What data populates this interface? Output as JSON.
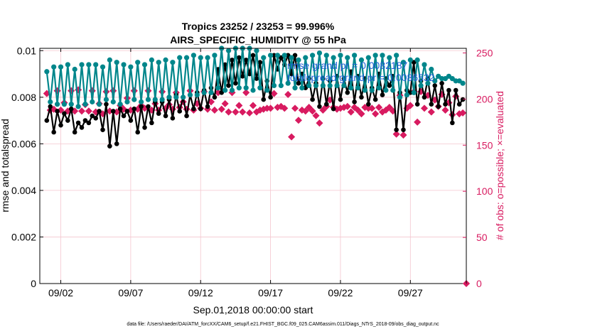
{
  "chart_data": {
    "type": "line",
    "title": "Tropics 23252 / 23253 = 99.996%",
    "subtitle": "AIRS_SPECIFIC_HUMIDITY @ 55 hPa",
    "xlabel": "Sep.01,2018 00:00:00 start",
    "ylabel_left": "rmse and totalspread",
    "ylabel_right": "# of obs: o=possible; ×=evaluated",
    "footnote": "data file: /Users/raeder/DAI/ATM_forcXX/CAM6_setup/f.e21.FHIST_BGC.f09_025.CAM6assim.011/Diags_NTrS_2018-09/obs_diag_output.nc",
    "x_range_days": [
      0.5,
      31.0
    ],
    "y_left_lim": [
      0,
      0.0101
    ],
    "y_right_lim": [
      0,
      255
    ],
    "x_ticks": [
      {
        "day": 2,
        "label": "09/02"
      },
      {
        "day": 7,
        "label": "09/07"
      },
      {
        "day": 12,
        "label": "09/12"
      },
      {
        "day": 17,
        "label": "09/17"
      },
      {
        "day": 22,
        "label": "09/22"
      },
      {
        "day": 27,
        "label": "09/27"
      }
    ],
    "y_left_ticks": [
      {
        "value": 0,
        "label": "0"
      },
      {
        "value": 0.002,
        "label": "0.002"
      },
      {
        "value": 0.004,
        "label": "0.004"
      },
      {
        "value": 0.006,
        "label": "0.006"
      },
      {
        "value": 0.008,
        "label": "0.008"
      },
      {
        "value": 0.01,
        "label": "0.01"
      }
    ],
    "y_right_ticks": [
      {
        "value": 0,
        "label": "0"
      },
      {
        "value": 50,
        "label": "50"
      },
      {
        "value": 100,
        "label": "100"
      },
      {
        "value": 150,
        "label": "150"
      },
      {
        "value": 200,
        "label": "200"
      },
      {
        "value": 250,
        "label": "250"
      }
    ],
    "legend": [
      "rmse grand pr = 0.0082187",
      "totalspread grand pr = 0.0086532"
    ],
    "colors": {
      "rmse": "#000000",
      "totalspread": "#00868b",
      "obs": "#d81b60",
      "legend_text": "#1e5fd6",
      "grid": "#f4c6cf"
    },
    "series": [
      {
        "name": "rmse",
        "time_days": [
          1.0,
          1.25,
          1.5,
          1.75,
          2.0,
          2.25,
          2.5,
          2.75,
          3.0,
          3.25,
          3.5,
          3.75,
          4.0,
          4.25,
          4.5,
          4.75,
          5.0,
          5.25,
          5.5,
          5.75,
          6.0,
          6.25,
          6.5,
          6.75,
          7.0,
          7.25,
          7.5,
          7.75,
          8.0,
          8.25,
          8.5,
          8.75,
          9.0,
          9.25,
          9.5,
          9.75,
          10.0,
          10.25,
          10.5,
          10.75,
          11.0,
          11.25,
          11.5,
          11.75,
          12.0,
          12.25,
          12.5,
          12.75,
          13.0,
          13.25,
          13.5,
          13.75,
          14.0,
          14.25,
          14.5,
          14.75,
          15.0,
          15.25,
          15.5,
          15.75,
          16.0,
          16.25,
          16.5,
          16.75,
          17.0,
          17.25,
          17.5,
          17.75,
          18.0,
          18.25,
          18.5,
          18.75,
          19.0,
          19.25,
          19.5,
          19.75,
          20.0,
          20.25,
          20.5,
          20.75,
          21.0,
          21.25,
          21.5,
          21.75,
          22.0,
          22.25,
          22.5,
          22.75,
          23.0,
          23.25,
          23.5,
          23.75,
          24.0,
          24.25,
          24.5,
          24.75,
          25.0,
          25.25,
          25.5,
          25.75,
          26.0,
          26.25,
          26.5,
          26.75,
          27.0,
          27.25,
          27.5,
          27.75,
          28.0,
          28.25,
          28.5,
          28.75,
          29.0,
          29.25,
          29.5,
          29.75,
          30.0,
          30.25,
          30.5,
          30.75
        ],
        "values": [
          0.007,
          0.0076,
          0.0065,
          0.0074,
          0.0068,
          0.0073,
          0.007,
          0.0075,
          0.0065,
          0.0069,
          0.0067,
          0.007,
          0.0069,
          0.0072,
          0.0071,
          0.0074,
          0.0066,
          0.0077,
          0.0059,
          0.0074,
          0.006,
          0.0075,
          0.0072,
          0.0074,
          0.007,
          0.0075,
          0.0065,
          0.0076,
          0.0067,
          0.0076,
          0.0069,
          0.0078,
          0.0073,
          0.0078,
          0.0072,
          0.0079,
          0.0071,
          0.0081,
          0.0074,
          0.008,
          0.0072,
          0.0081,
          0.0075,
          0.0082,
          0.0075,
          0.0083,
          0.0076,
          0.0084,
          0.008,
          0.0092,
          0.0082,
          0.0094,
          0.0085,
          0.0096,
          0.0086,
          0.0097,
          0.0089,
          0.0096,
          0.009,
          0.0098,
          0.0088,
          0.0095,
          0.0079,
          0.0087,
          0.008,
          0.0098,
          0.0092,
          0.0097,
          0.0094,
          0.0098,
          0.009,
          0.0098,
          0.0086,
          0.009,
          0.0084,
          0.0088,
          0.0079,
          0.0086,
          0.0076,
          0.0088,
          0.0077,
          0.0087,
          0.0075,
          0.0089,
          0.0079,
          0.0088,
          0.0082,
          0.0091,
          0.0078,
          0.0089,
          0.008,
          0.0088,
          0.0077,
          0.0084,
          0.0079,
          0.009,
          0.0081,
          0.0088,
          0.0085,
          0.0089,
          0.0066,
          0.0082,
          0.0066,
          0.0083,
          0.0082,
          0.0095,
          0.0077,
          0.0087,
          0.008,
          0.0088,
          0.0077,
          0.0085,
          0.0076,
          0.0086,
          0.0077,
          0.0083,
          0.0069,
          0.0083,
          0.0077,
          0.0079
        ]
      },
      {
        "name": "totalspread",
        "time_days": [
          1.0,
          1.25,
          1.5,
          1.75,
          2.0,
          2.25,
          2.5,
          2.75,
          3.0,
          3.25,
          3.5,
          3.75,
          4.0,
          4.25,
          4.5,
          4.75,
          5.0,
          5.25,
          5.5,
          5.75,
          6.0,
          6.25,
          6.5,
          6.75,
          7.0,
          7.25,
          7.5,
          7.75,
          8.0,
          8.25,
          8.5,
          8.75,
          9.0,
          9.25,
          9.5,
          9.75,
          10.0,
          10.25,
          10.5,
          10.75,
          11.0,
          11.25,
          11.5,
          11.75,
          12.0,
          12.25,
          12.5,
          12.75,
          13.0,
          13.25,
          13.5,
          13.75,
          14.0,
          14.25,
          14.5,
          14.75,
          15.0,
          15.25,
          15.5,
          15.75,
          16.0,
          16.25,
          16.5,
          16.75,
          17.0,
          17.25,
          17.5,
          17.75,
          18.0,
          18.25,
          18.5,
          18.75,
          19.0,
          19.25,
          19.5,
          19.75,
          20.0,
          20.25,
          20.5,
          20.75,
          21.0,
          21.25,
          21.5,
          21.75,
          22.0,
          22.25,
          22.5,
          22.75,
          23.0,
          23.25,
          23.5,
          23.75,
          24.0,
          24.25,
          24.5,
          24.75,
          25.0,
          25.25,
          25.5,
          25.75,
          26.0,
          26.25,
          26.5,
          26.75,
          27.0,
          27.25,
          27.5,
          27.75,
          28.0,
          28.25,
          28.5,
          28.75,
          29.0,
          29.25,
          29.5,
          29.75,
          30.0,
          30.25,
          30.5,
          30.75
        ],
        "values": [
          0.0091,
          0.0078,
          0.0093,
          0.0077,
          0.0093,
          0.0077,
          0.0094,
          0.0077,
          0.0092,
          0.0076,
          0.0094,
          0.0077,
          0.0094,
          0.0078,
          0.0094,
          0.0077,
          0.0093,
          0.0079,
          0.0096,
          0.0078,
          0.0095,
          0.0077,
          0.0094,
          0.0078,
          0.0093,
          0.0079,
          0.0095,
          0.0078,
          0.0094,
          0.0079,
          0.0096,
          0.0079,
          0.0095,
          0.0079,
          0.0096,
          0.008,
          0.0095,
          0.008,
          0.0097,
          0.008,
          0.0097,
          0.0081,
          0.0098,
          0.0081,
          0.0097,
          0.0082,
          0.0097,
          0.0082,
          0.0098,
          0.0084,
          0.0101,
          0.0083,
          0.01,
          0.0083,
          0.0101,
          0.0084,
          0.0101,
          0.0084,
          0.0101,
          0.0083,
          0.01,
          0.0084,
          0.0097,
          0.0083,
          0.0098,
          0.0085,
          0.0098,
          0.0085,
          0.0098,
          0.0086,
          0.0097,
          0.0084,
          0.0096,
          0.0084,
          0.0097,
          0.0085,
          0.0098,
          0.0085,
          0.0099,
          0.0085,
          0.0098,
          0.0085,
          0.0097,
          0.0085,
          0.0098,
          0.0085,
          0.0097,
          0.0084,
          0.0098,
          0.0084,
          0.0096,
          0.0083,
          0.0097,
          0.0083,
          0.0098,
          0.0084,
          0.0098,
          0.0083,
          0.0097,
          0.0083,
          0.0098,
          0.008,
          0.0095,
          0.0081,
          0.0096,
          0.0082,
          0.0096,
          0.0085,
          0.0094,
          0.0086,
          0.0092,
          0.0087,
          0.0089,
          0.0088,
          0.0088,
          0.0089,
          0.0088,
          0.0087,
          0.0087,
          0.0086
        ]
      },
      {
        "name": "obs_evaluated",
        "axis": "right",
        "time_days": [
          1.0,
          1.25,
          1.5,
          1.75,
          2.0,
          2.25,
          2.5,
          2.75,
          3.0,
          3.25,
          3.5,
          3.75,
          4.0,
          4.25,
          4.5,
          4.75,
          5.0,
          5.25,
          5.5,
          5.75,
          6.0,
          6.25,
          6.5,
          6.75,
          7.0,
          7.25,
          7.5,
          7.75,
          8.0,
          8.25,
          8.5,
          8.75,
          9.0,
          9.25,
          9.5,
          9.75,
          10.0,
          10.25,
          10.5,
          10.75,
          11.0,
          11.25,
          11.5,
          11.75,
          12.0,
          12.25,
          12.5,
          12.75,
          13.0,
          13.25,
          13.5,
          13.75,
          14.0,
          14.25,
          14.5,
          14.75,
          15.0,
          15.25,
          15.5,
          15.75,
          16.0,
          16.25,
          16.5,
          16.75,
          17.0,
          17.25,
          17.5,
          17.75,
          18.0,
          18.25,
          18.5,
          18.75,
          19.0,
          19.25,
          19.5,
          19.75,
          20.0,
          20.25,
          20.5,
          20.75,
          21.0,
          21.25,
          21.5,
          21.75,
          22.0,
          22.25,
          22.5,
          22.75,
          23.0,
          23.25,
          23.5,
          23.75,
          24.0,
          24.25,
          24.5,
          24.75,
          25.0,
          25.25,
          25.5,
          25.75,
          26.0,
          26.25,
          26.5,
          26.75,
          27.0,
          27.25,
          27.5,
          27.75,
          28.0,
          28.25,
          28.5,
          28.75,
          29.0,
          29.25,
          29.5,
          29.75,
          30.0,
          30.25,
          30.5,
          30.75
        ],
        "values": [
          206,
          188,
          189,
          209,
          188,
          196,
          187,
          209,
          187,
          210,
          187,
          194,
          187,
          209,
          186,
          195,
          184,
          208,
          187,
          209,
          186,
          193,
          189,
          201,
          188,
          209,
          189,
          193,
          190,
          209,
          188,
          195,
          188,
          208,
          190,
          194,
          189,
          207,
          191,
          197,
          189,
          209,
          188,
          195,
          190,
          208,
          189,
          197,
          188,
          207,
          189,
          195,
          186,
          207,
          186,
          193,
          186,
          207,
          185,
          193,
          186,
          188,
          189,
          190,
          190,
          206,
          191,
          192,
          190,
          205,
          159,
          190,
          177,
          188,
          187,
          191,
          187,
          182,
          174,
          188,
          192,
          199,
          191,
          189,
          190,
          191,
          192,
          186,
          191,
          188,
          184,
          191,
          190,
          190,
          184,
          191,
          186,
          188,
          191,
          187,
          162,
          204,
          161,
          190,
          193,
          208,
          175,
          208,
          190,
          204,
          186,
          199,
          192,
          205,
          188,
          196,
          183,
          203,
          184,
          185
        ]
      }
    ],
    "obs_evaluated_outlier": {
      "day": 31.0,
      "value": 0
    }
  }
}
